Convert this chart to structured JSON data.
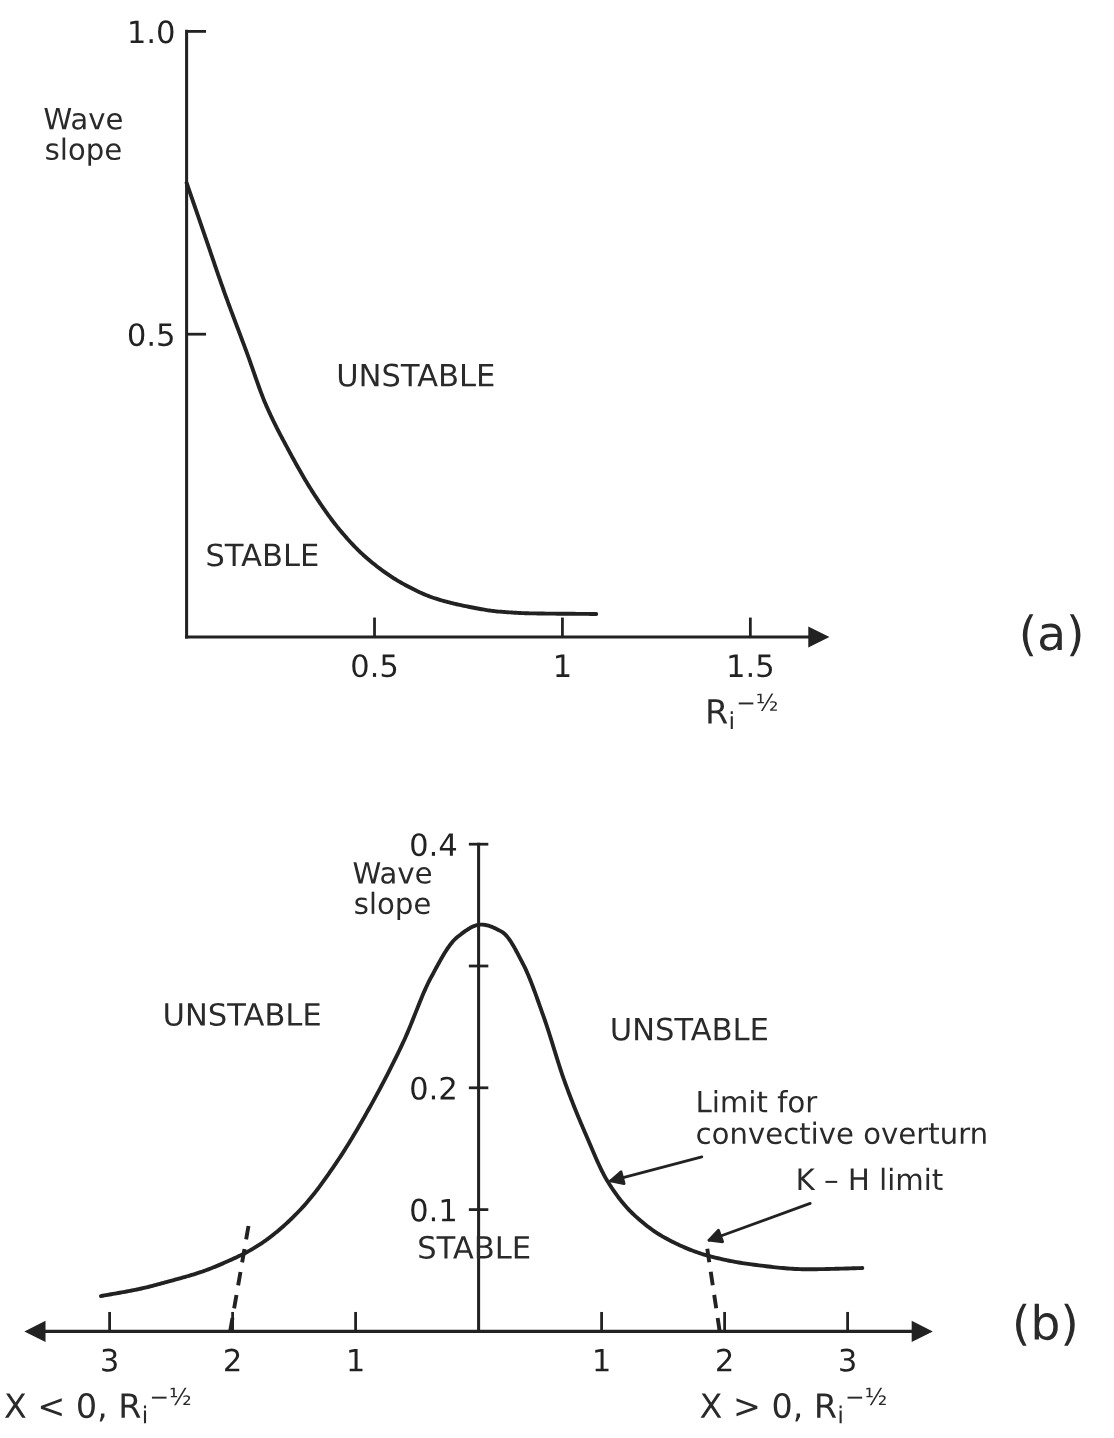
{
  "chart_data": [
    {
      "type": "line",
      "xlabel": "R$_{i}$$^{−½}$",
      "ylabel": "Wave\nslope",
      "series": [
        {
          "color": "#222222",
          "x": [
            0,
            0.05,
            0.1,
            0.16,
            0.21,
            0.27,
            0.34,
            0.41,
            0.48,
            0.57,
            0.66,
            0.75,
            0.83,
            0.92,
            1.09
          ],
          "values": [
            0.75,
            0.66,
            0.57,
            0.47,
            0.385,
            0.31,
            0.235,
            0.175,
            0.13,
            0.09,
            0.064,
            0.05,
            0.042,
            0.039,
            0.038
          ]
        }
      ],
      "xlim": [
        0,
        1.68
      ],
      "ylim": [
        0,
        1.0
      ],
      "xticks": [
        0.5,
        1,
        1.5
      ],
      "yticks": [
        0.5,
        {
          "value": 1.0,
          "label": "1.0"
        }
      ],
      "annotations": [
        "UNSTABLE",
        "STABLE",
        "(a)"
      ]
    },
    {
      "type": "line",
      "xlabel": "X > 0, R$_{i}$$^{−½}$",
      "ylabel": "Wave\nslope",
      "series": [
        {
          "color": "#222222",
          "x": [
            -3.07,
            -2.75,
            -2.52,
            -2.25,
            -2.03,
            -1.85,
            -1.7,
            -1.43,
            -1.16,
            -0.89,
            -0.61,
            -0.39,
            -0.17,
            0.02,
            0.19,
            0.36,
            0.53,
            0.7,
            0.87,
            1.05,
            1.25,
            1.53,
            1.87,
            2.22,
            2.67,
            3.12
          ],
          "values": [
            0.029,
            0.035,
            0.041,
            0.049,
            0.058,
            0.067,
            0.077,
            0.102,
            0.138,
            0.183,
            0.238,
            0.29,
            0.324,
            0.334,
            0.328,
            0.302,
            0.258,
            0.205,
            0.162,
            0.123,
            0.097,
            0.076,
            0.062,
            0.055,
            0.051,
            0.052
          ]
        },
        {
          "color": "#222222",
          "line_style": "dashed",
          "x": [
            -2.02,
            -1.87
          ],
          "values": [
            0,
            0.087
          ]
        },
        {
          "color": "#222222",
          "line_style": "dashed",
          "x": [
            1.96,
            1.85
          ],
          "values": [
            0,
            0.074
          ]
        }
      ],
      "xlim": [
        -3.6,
        3.6
      ],
      "ylim": [
        0,
        0.4
      ],
      "xticks": [
        {
          "value": -3,
          "label": "3"
        },
        {
          "value": -2,
          "label": "2"
        },
        {
          "value": -1,
          "label": "1"
        },
        1,
        2,
        3
      ],
      "yticks": [
        0.1,
        0.2,
        {
          "value": 0.3,
          "label": null
        },
        0.4
      ],
      "annotations": [
        "UNSTABLE",
        "UNSTABLE",
        "STABLE",
        {
          "text": "Limit for\nconvective overturn",
          "x": 1.05,
          "y": 0.123
        },
        {
          "text": "K – H limit",
          "x": 1.85,
          "y": 0.074
        },
        "X < 0, R$_{i}$$^{−½}$",
        "(b)"
      ]
    }
  ]
}
